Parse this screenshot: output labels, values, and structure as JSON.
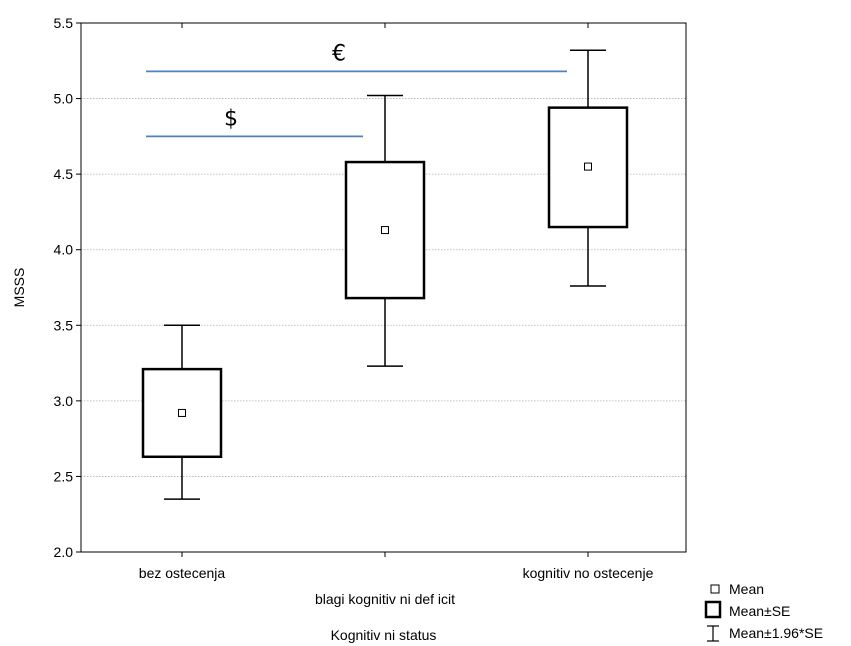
{
  "chart_data": {
    "type": "boxplot",
    "title": "",
    "xlabel": "Kognitiv ni status",
    "ylabel": "MSSS",
    "ylim": [
      2.0,
      5.5
    ],
    "yticks": [
      2.0,
      2.5,
      3.0,
      3.5,
      4.0,
      4.5,
      5.0,
      5.5
    ],
    "ytick_labels": [
      "2.0",
      "2.5",
      "3.0",
      "3.5",
      "4.0",
      "4.5",
      "5.0",
      "5.5"
    ],
    "grid": true,
    "categories": [
      "bez ostecenja",
      "blagi kognitiv ni def icit",
      "kognitiv no ostecenje"
    ],
    "series": [
      {
        "mean": 2.92,
        "se_low": 2.63,
        "se_high": 3.21,
        "ci_low": 2.35,
        "ci_high": 3.5
      },
      {
        "mean": 4.13,
        "se_low": 3.68,
        "se_high": 4.58,
        "ci_low": 3.23,
        "ci_high": 5.02
      },
      {
        "mean": 4.55,
        "se_low": 4.15,
        "se_high": 4.94,
        "ci_low": 3.76,
        "ci_high": 5.32
      }
    ],
    "annotations": [
      {
        "label": "$",
        "y": 4.75,
        "from_category": 0,
        "to_category": 1
      },
      {
        "label": "€",
        "y": 5.18,
        "from_category": 0,
        "to_category": 2
      }
    ],
    "legend": {
      "position": "bottom-right",
      "items": [
        "Mean",
        "Mean±SE",
        "Mean±1.96*SE"
      ]
    },
    "colors": {
      "annotation_line": "#4f81bd",
      "grid": "#b0b0b0",
      "ink": "#000000"
    }
  }
}
